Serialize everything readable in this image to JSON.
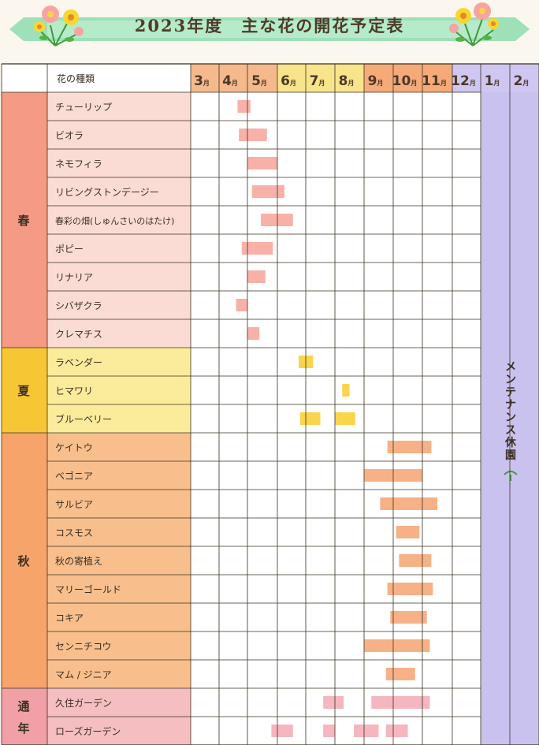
{
  "title": "2023年度　主な花の開花予定表",
  "header": {
    "flower_type": "花の種類",
    "months": [
      {
        "num": "3",
        "unit": "月"
      },
      {
        "num": "4",
        "unit": "月"
      },
      {
        "num": "5",
        "unit": "月"
      },
      {
        "num": "6",
        "unit": "月"
      },
      {
        "num": "7",
        "unit": "月"
      },
      {
        "num": "8",
        "unit": "月"
      },
      {
        "num": "9",
        "unit": "月"
      },
      {
        "num": "10",
        "unit": "月"
      },
      {
        "num": "11",
        "unit": "月"
      },
      {
        "num": "12",
        "unit": "月"
      },
      {
        "num": "1",
        "unit": "月"
      },
      {
        "num": "2",
        "unit": "月"
      }
    ]
  },
  "maintenance": "メンテナンス休園",
  "colors": {
    "spring": "#f59a85",
    "spring_light": "#fbdcd4",
    "spring_bar": "#f7a8a0",
    "summer": "#f6c635",
    "summer_light": "#fbec9c",
    "summer_bar": "#f8cf38",
    "autumn": "#f6a46a",
    "autumn_light": "#f8bf8d",
    "autumn_bar": "#f6a87a",
    "allyear": "#f0a0a6",
    "allyear_light": "#f5bec0",
    "allyear_bar": "#f4aeb8",
    "maint": "#c9c2ef",
    "grid": "#3a3020"
  },
  "sections": [
    {
      "label": "春",
      "theme": "spring",
      "rows": [
        {
          "name": "チューリップ",
          "bars": [
            [
              4.65,
              5.1
            ]
          ]
        },
        {
          "name": "ビオラ",
          "bars": [
            [
              4.7,
              5.65
            ]
          ]
        },
        {
          "name": "ネモフィラ",
          "bars": [
            [
              5.0,
              6.0
            ]
          ]
        },
        {
          "name": "リビングストンデージー",
          "bars": [
            [
              5.15,
              6.25
            ]
          ]
        },
        {
          "name": "春彩の畑(しゅんさいのはたけ)",
          "bars": [
            [
              5.45,
              6.55
            ]
          ]
        },
        {
          "name": "ポピー",
          "bars": [
            [
              4.8,
              5.85
            ]
          ]
        },
        {
          "name": "リナリア",
          "bars": [
            [
              5.0,
              5.6
            ]
          ]
        },
        {
          "name": "シバザクラ",
          "bars": [
            [
              4.6,
              5.0
            ]
          ]
        },
        {
          "name": "クレマチス",
          "bars": [
            [
              5.0,
              5.4
            ]
          ]
        }
      ]
    },
    {
      "label": "夏",
      "theme": "summer",
      "rows": [
        {
          "name": "ラベンダー",
          "bars": [
            [
              6.75,
              7.25
            ]
          ]
        },
        {
          "name": "ヒマワリ",
          "bars": [
            [
              8.25,
              8.5
            ]
          ]
        },
        {
          "name": "ブルーベリー",
          "bars": [
            [
              6.8,
              7.5
            ]
          ],
          "bars2": [
            [
              8.0,
              8.7
            ]
          ]
        }
      ]
    },
    {
      "label": "秋",
      "theme": "autumn",
      "rows": [
        {
          "name": "ケイトウ",
          "bars": [
            [
              9.8,
              11.3
            ]
          ]
        },
        {
          "name": "ベゴニア",
          "bars": [
            [
              9.0,
              11.0
            ]
          ]
        },
        {
          "name": "サルビア",
          "bars": [
            [
              9.55,
              11.5
            ]
          ]
        },
        {
          "name": "コスモス",
          "bars": [
            [
              10.1,
              10.9
            ]
          ]
        },
        {
          "name": "秋の寄植え",
          "bars": [
            [
              10.2,
              11.3
            ]
          ]
        },
        {
          "name": "マリーゴールド",
          "bars": [
            [
              9.8,
              11.35
            ]
          ]
        },
        {
          "name": "コキア",
          "bars": [
            [
              9.9,
              11.15
            ]
          ]
        },
        {
          "name": "センニチコウ",
          "bars": [
            [
              9.0,
              11.25
            ]
          ]
        },
        {
          "name": "マム / ジニア",
          "bars": [
            [
              9.75,
              10.75
            ]
          ]
        }
      ]
    },
    {
      "label": "通年",
      "theme": "allyear",
      "rows": [
        {
          "name": "久住ガーデン",
          "bars": [
            [
              7.6,
              8.3
            ],
            [
              9.25,
              11.25
            ]
          ]
        },
        {
          "name": "ローズガーデン",
          "bars": [
            [
              5.8,
              6.55
            ],
            [
              7.6,
              8.0
            ],
            [
              8.65,
              9.5
            ],
            [
              9.75,
              10.5
            ]
          ]
        }
      ]
    }
  ]
}
